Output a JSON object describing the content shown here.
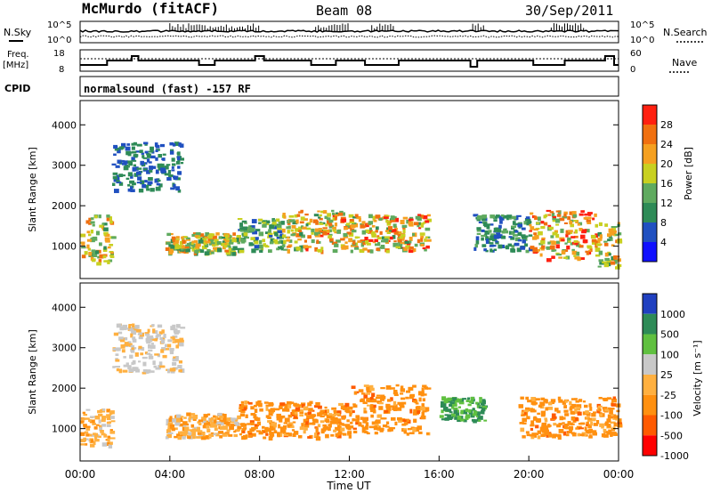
{
  "header": {
    "station": "McMurdo (fitACF)",
    "beam": "Beam 08",
    "date": "30/Sep/2011"
  },
  "strip": {
    "nsky_label": "N.Sky",
    "nsearch_label": "N.Search",
    "nsky_ticks": [
      "10^5",
      "10^0"
    ],
    "nsearch_ticks": [
      "10^5",
      "10^0"
    ],
    "freq_label_1": "Freq.",
    "freq_label_2": "[MHz]",
    "freq_ticks": [
      "18",
      "8"
    ],
    "nave_label": "Nave",
    "nave_ticks": [
      "60",
      "0"
    ],
    "cpid_label": "CPID",
    "cpid_text": "normalsound (fast) -157 RF"
  },
  "colors": {
    "power_scale": [
      "#1010ff",
      "#2050c0",
      "#2e8b57",
      "#5faa5f",
      "#c8d020",
      "#f5a020",
      "#f07010",
      "#ff2010"
    ],
    "velocity_scale": [
      "#ff0000",
      "#ff5a00",
      "#ff9010",
      "#ffb040",
      "#c8c8c8",
      "#60c040",
      "#2e8b57",
      "#2040c0"
    ]
  },
  "chart_data": [
    {
      "type": "heatmap",
      "name": "power",
      "ylabel": "Slant Range [km]",
      "xlabel": "",
      "ylim": [
        200,
        4600
      ],
      "yticks": [
        "1000",
        "2000",
        "3000",
        "4000"
      ],
      "colorbar_label": "Power [dB]",
      "colorbar_ticks": [
        "4",
        "8",
        "12",
        "16",
        "20",
        "24",
        "28"
      ],
      "bands": [
        {
          "t0": 0.0,
          "t1": 1.4,
          "r0": 600,
          "r1": 1800,
          "peak": 22
        },
        {
          "t0": 1.4,
          "t1": 4.5,
          "r0": 2400,
          "r1": 3600,
          "peak": 10
        },
        {
          "t0": 3.8,
          "t1": 7.0,
          "r0": 850,
          "r1": 1350,
          "peak": 22
        },
        {
          "t0": 7.0,
          "t1": 9.0,
          "r0": 900,
          "r1": 1700,
          "peak": 16
        },
        {
          "t0": 9.0,
          "t1": 12.5,
          "r0": 900,
          "r1": 1900,
          "peak": 24
        },
        {
          "t0": 12.5,
          "t1": 15.5,
          "r0": 900,
          "r1": 1800,
          "peak": 26
        },
        {
          "t0": 17.5,
          "t1": 20.0,
          "r0": 900,
          "r1": 1800,
          "peak": 12
        },
        {
          "t0": 20.0,
          "t1": 23.0,
          "r0": 700,
          "r1": 1900,
          "peak": 30
        },
        {
          "t0": 23.0,
          "t1": 24.0,
          "r0": 500,
          "r1": 1600,
          "peak": 22
        }
      ]
    },
    {
      "type": "heatmap",
      "name": "velocity",
      "ylabel": "Slant Range [km]",
      "xlabel": "Time UT",
      "ylim": [
        200,
        4600
      ],
      "yticks": [
        "1000",
        "2000",
        "3000",
        "4000"
      ],
      "xticks": [
        "00:00",
        "04:00",
        "08:00",
        "12:00",
        "16:00",
        "20:00",
        "00:00"
      ],
      "colorbar_label": "Velocity [m s⁻¹]",
      "colorbar_ticks": [
        "1000",
        "500",
        "100",
        "25",
        "-25",
        "-100",
        "-500",
        "-1000"
      ],
      "bands": [
        {
          "t0": 0.0,
          "t1": 1.4,
          "r0": 600,
          "r1": 1500,
          "v": -150
        },
        {
          "t0": 1.4,
          "t1": 4.5,
          "r0": 2400,
          "r1": 3600,
          "v": 0
        },
        {
          "t0": 3.8,
          "t1": 7.0,
          "r0": 800,
          "r1": 1400,
          "v": -200
        },
        {
          "t0": 7.0,
          "t1": 12.0,
          "r0": 800,
          "r1": 1700,
          "v": -250
        },
        {
          "t0": 12.0,
          "t1": 15.5,
          "r0": 900,
          "r1": 2100,
          "v": -250
        },
        {
          "t0": 16.0,
          "t1": 18.0,
          "r0": 1200,
          "r1": 1800,
          "v": 150
        },
        {
          "t0": 19.5,
          "t1": 24.0,
          "r0": 800,
          "r1": 1800,
          "v": -300
        }
      ]
    }
  ]
}
